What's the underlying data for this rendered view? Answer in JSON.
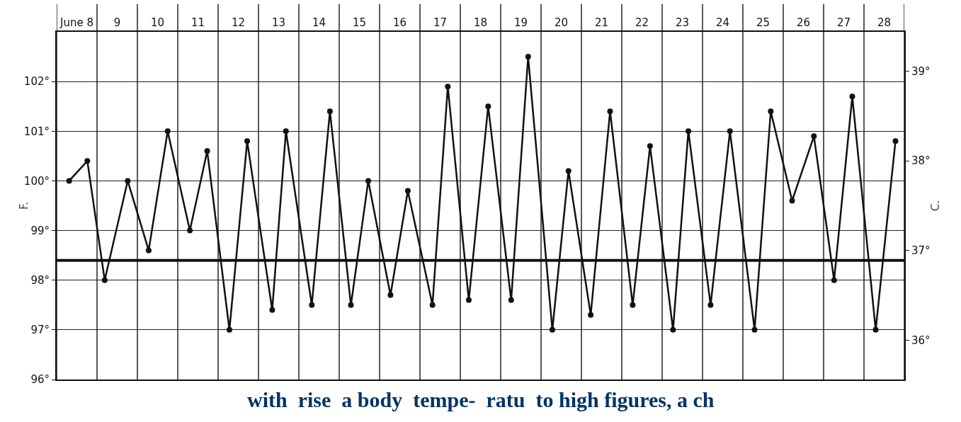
{
  "chart_data": {
    "type": "line",
    "ylabel": "F.",
    "y2label": "C.",
    "annotations": [
      "with",
      "rise",
      "a body",
      "tempe-",
      "ratu",
      "to high figures, a ch"
    ],
    "xlim": [
      8,
      29
    ],
    "xticks": [
      {
        "value": 8.5,
        "label": "June 8"
      },
      {
        "value": 9.5,
        "label": "9"
      },
      {
        "value": 10.5,
        "label": "10"
      },
      {
        "value": 11.5,
        "label": "11"
      },
      {
        "value": 12.5,
        "label": "12"
      },
      {
        "value": 13.5,
        "label": "13"
      },
      {
        "value": 14.5,
        "label": "14"
      },
      {
        "value": 15.5,
        "label": "15"
      },
      {
        "value": 16.5,
        "label": "16"
      },
      {
        "value": 17.5,
        "label": "17"
      },
      {
        "value": 18.5,
        "label": "18"
      },
      {
        "value": 19.5,
        "label": "19"
      },
      {
        "value": 20.5,
        "label": "20"
      },
      {
        "value": 21.5,
        "label": "21"
      },
      {
        "value": 22.5,
        "label": "22"
      },
      {
        "value": 23.5,
        "label": "23"
      },
      {
        "value": 24.5,
        "label": "24"
      },
      {
        "value": 25.5,
        "label": "25"
      },
      {
        "value": 26.5,
        "label": "26"
      },
      {
        "value": 27.5,
        "label": "27"
      },
      {
        "value": 28.5,
        "label": "28"
      }
    ],
    "ylim": [
      96,
      103
    ],
    "yticks": [
      {
        "value": 96,
        "label": "96°"
      },
      {
        "value": 97,
        "label": "97°"
      },
      {
        "value": 98,
        "label": "98°"
      },
      {
        "value": 99,
        "label": "99°"
      },
      {
        "value": 100,
        "label": "100°"
      },
      {
        "value": 101,
        "label": "101°"
      },
      {
        "value": 102,
        "label": "102°"
      }
    ],
    "y2lim": [
      35.56,
      39.44
    ],
    "y2ticks": [
      {
        "value": 36,
        "label": "36°"
      },
      {
        "value": 37,
        "label": "37°"
      },
      {
        "value": 38,
        "label": "38°"
      },
      {
        "value": 39,
        "label": "39°"
      }
    ],
    "series": [
      {
        "color": "#111111",
        "x": [
          8.31,
          8.76,
          9.19,
          9.76,
          10.28,
          10.75,
          11.3,
          11.73,
          12.28,
          12.72,
          13.34,
          13.68,
          14.32,
          14.77,
          15.29,
          15.72,
          16.27,
          16.7,
          17.31,
          17.69,
          18.21,
          18.69,
          19.26,
          19.68,
          20.28,
          20.68,
          21.23,
          21.71,
          22.27,
          22.7,
          23.27,
          23.65,
          24.2,
          24.68,
          25.29,
          25.69,
          26.22,
          26.76,
          27.26,
          27.71,
          28.29,
          28.78
        ],
        "values": [
          100.0,
          100.4,
          98.0,
          100.0,
          98.6,
          101.0,
          99.0,
          100.6,
          97.0,
          100.8,
          97.4,
          101.0,
          97.5,
          101.4,
          97.5,
          100.0,
          97.7,
          99.8,
          97.5,
          101.9,
          97.6,
          101.5,
          97.6,
          102.5,
          97.0,
          100.2,
          97.3,
          101.4,
          97.5,
          100.7,
          97.0,
          101.0,
          97.5,
          101.0,
          97.0,
          101.4,
          99.6,
          100.9,
          98.0,
          101.7,
          97.0,
          100.8
        ]
      }
    ],
    "ref_lines": [
      {
        "axis": "y",
        "value": 98.4,
        "color": "#111111"
      }
    ],
    "grid": true,
    "marker": "circle",
    "line_style": "solid"
  }
}
